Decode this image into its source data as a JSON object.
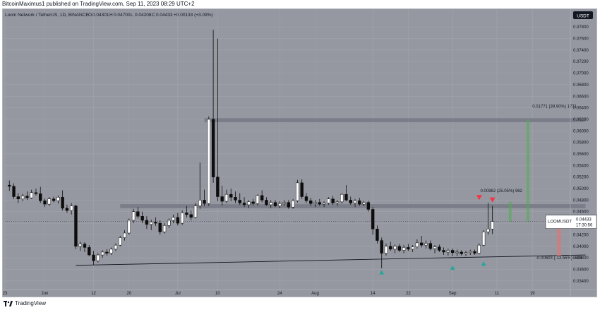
{
  "publish_line": "BitcoinMaximus1 published on TradingView.com, Sep 11, 2023 08:29 UTC+2",
  "footer": {
    "brand": "TradingView"
  },
  "colors": {
    "background": "#9598a1",
    "grid": "#a3a6ae",
    "text": "#131722",
    "up_candle_body": "#ffffff",
    "down_candle_body": "#0d0d0d",
    "wick": "#0d0d0d",
    "zone": "#787b86",
    "green_arrow": "#26a69a",
    "red_arrow": "#f23645",
    "green_bar": "#4caf50",
    "red_bar": "#e57373",
    "last_price_tag": "#ffffff"
  },
  "chart_data": {
    "type": "candlestick",
    "symbol_line": "Loom Network / TetherUS, 1D, BINANCE",
    "ohlc": {
      "o_label": "O",
      "o": "0.04301",
      "h_label": "H",
      "h": "0.04700",
      "l_label": "L",
      "l": "0.04208",
      "c_label": "C",
      "c": "0.04433",
      "change": "+0.00133 (+3.09%)"
    },
    "currency_badge": "USDT",
    "price_tag": {
      "symbol": "LOOMUSDT",
      "price": "0.04433",
      "countdown": "17:30:56"
    },
    "ylim": [
      0.033,
      0.079
    ],
    "y_ticks": [
      "0.03400",
      "0.03600",
      "0.03800",
      "0.04000",
      "0.04200",
      "0.04400",
      "0.04600",
      "0.04800",
      "0.05000",
      "0.05200",
      "0.05400",
      "0.05600",
      "0.05800",
      "0.06000",
      "0.06200",
      "0.06400",
      "0.06600",
      "0.06800",
      "0.07000",
      "0.07200",
      "0.07400",
      "0.07600",
      "0.07800"
    ],
    "y_tick_values": [
      0.034,
      0.036,
      0.038,
      0.04,
      0.042,
      0.044,
      0.046,
      0.048,
      0.05,
      0.052,
      0.054,
      0.056,
      0.058,
      0.06,
      0.062,
      0.064,
      0.066,
      0.068,
      0.07,
      0.072,
      0.074,
      0.076,
      0.078
    ],
    "x_day_range": [
      0,
      122
    ],
    "x_ticks": [
      {
        "label": "23",
        "day": 0
      },
      {
        "label": "Jun",
        "day": 9
      },
      {
        "label": "12",
        "day": 20
      },
      {
        "label": "20",
        "day": 28
      },
      {
        "label": "Jul",
        "day": 39
      },
      {
        "label": "10",
        "day": 48
      },
      {
        "label": "24",
        "day": 62
      },
      {
        "label": "Aug",
        "day": 70
      },
      {
        "label": "14",
        "day": 83
      },
      {
        "label": "22",
        "day": 91
      },
      {
        "label": "Sep",
        "day": 101
      },
      {
        "label": "11",
        "day": 111
      },
      {
        "label": "19",
        "day": 119
      },
      {
        "label": "Oct",
        "day": 131
      }
    ],
    "candles": [
      [
        0.0506,
        0.0514,
        0.0496,
        0.0504
      ],
      [
        0.0504,
        0.0509,
        0.0482,
        0.0486
      ],
      [
        0.0486,
        0.0492,
        0.0475,
        0.0482
      ],
      [
        0.0482,
        0.0491,
        0.0478,
        0.0487
      ],
      [
        0.0487,
        0.0495,
        0.048,
        0.0484
      ],
      [
        0.0484,
        0.0498,
        0.0482,
        0.0493
      ],
      [
        0.0493,
        0.05,
        0.0488,
        0.0491
      ],
      [
        0.0491,
        0.0503,
        0.0475,
        0.0479
      ],
      [
        0.0479,
        0.0483,
        0.0468,
        0.0473
      ],
      [
        0.0473,
        0.0485,
        0.047,
        0.0482
      ],
      [
        0.0482,
        0.0486,
        0.0476,
        0.0479
      ],
      [
        0.0479,
        0.0488,
        0.0474,
        0.0485
      ],
      [
        0.0485,
        0.0497,
        0.0462,
        0.0466
      ],
      [
        0.0466,
        0.0472,
        0.0458,
        0.0462
      ],
      [
        0.0462,
        0.0475,
        0.0455,
        0.047
      ],
      [
        0.047,
        0.0472,
        0.0395,
        0.04
      ],
      [
        0.04,
        0.0408,
        0.0392,
        0.0404
      ],
      [
        0.0404,
        0.0407,
        0.039,
        0.0398
      ],
      [
        0.0398,
        0.0402,
        0.0383,
        0.0385
      ],
      [
        0.0385,
        0.0392,
        0.0368,
        0.0375
      ],
      [
        0.0375,
        0.0388,
        0.0372,
        0.0385
      ],
      [
        0.0385,
        0.0393,
        0.038,
        0.039
      ],
      [
        0.039,
        0.0395,
        0.0384,
        0.0388
      ],
      [
        0.0388,
        0.0398,
        0.0385,
        0.0395
      ],
      [
        0.0395,
        0.0405,
        0.0392,
        0.0402
      ],
      [
        0.0402,
        0.0418,
        0.04,
        0.0415
      ],
      [
        0.0415,
        0.0428,
        0.041,
        0.0423
      ],
      [
        0.0423,
        0.0448,
        0.042,
        0.0445
      ],
      [
        0.0445,
        0.0465,
        0.044,
        0.046
      ],
      [
        0.046,
        0.0468,
        0.0448,
        0.0452
      ],
      [
        0.0452,
        0.046,
        0.044,
        0.0445
      ],
      [
        0.0445,
        0.0452,
        0.043,
        0.0438
      ],
      [
        0.0438,
        0.0446,
        0.0428,
        0.0442
      ],
      [
        0.0442,
        0.045,
        0.0435,
        0.044
      ],
      [
        0.044,
        0.0445,
        0.042,
        0.0425
      ],
      [
        0.0425,
        0.044,
        0.0422,
        0.0436
      ],
      [
        0.0436,
        0.0448,
        0.0432,
        0.0445
      ],
      [
        0.0445,
        0.0455,
        0.044,
        0.045
      ],
      [
        0.045,
        0.0458,
        0.0436,
        0.044
      ],
      [
        0.044,
        0.0462,
        0.0437,
        0.0458
      ],
      [
        0.0458,
        0.047,
        0.045,
        0.0455
      ],
      [
        0.0455,
        0.0462,
        0.0445,
        0.045
      ],
      [
        0.045,
        0.0475,
        0.0448,
        0.047
      ],
      [
        0.047,
        0.0545,
        0.0465,
        0.048
      ],
      [
        0.048,
        0.0498,
        0.047,
        0.0474
      ],
      [
        0.0474,
        0.0625,
        0.047,
        0.062
      ],
      [
        0.062,
        0.0775,
        0.051,
        0.052
      ],
      [
        0.052,
        0.076,
        0.0478,
        0.0486
      ],
      [
        0.0486,
        0.0505,
        0.047,
        0.0478
      ],
      [
        0.0478,
        0.0498,
        0.0475,
        0.049
      ],
      [
        0.049,
        0.05,
        0.0478,
        0.0485
      ],
      [
        0.0485,
        0.0495,
        0.0475,
        0.048
      ],
      [
        0.048,
        0.0492,
        0.0472,
        0.0475
      ],
      [
        0.0475,
        0.0485,
        0.0468,
        0.0472
      ],
      [
        0.0472,
        0.048,
        0.0466,
        0.0477
      ],
      [
        0.0477,
        0.0482,
        0.047,
        0.0474
      ],
      [
        0.0474,
        0.049,
        0.047,
        0.0488
      ],
      [
        0.0488,
        0.0497,
        0.0476,
        0.048
      ],
      [
        0.048,
        0.0485,
        0.047,
        0.0472
      ],
      [
        0.0472,
        0.048,
        0.0466,
        0.0476
      ],
      [
        0.0476,
        0.048,
        0.0468,
        0.047
      ],
      [
        0.047,
        0.0478,
        0.0466,
        0.0474
      ],
      [
        0.0474,
        0.048,
        0.047,
        0.0476
      ],
      [
        0.0476,
        0.048,
        0.0465,
        0.0468
      ],
      [
        0.0468,
        0.0482,
        0.0465,
        0.0479
      ],
      [
        0.0479,
        0.0515,
        0.0476,
        0.051
      ],
      [
        0.051,
        0.0516,
        0.0482,
        0.0486
      ],
      [
        0.0486,
        0.0492,
        0.0475,
        0.0479
      ],
      [
        0.0479,
        0.0484,
        0.047,
        0.0474
      ],
      [
        0.0474,
        0.048,
        0.0468,
        0.0476
      ],
      [
        0.0476,
        0.0482,
        0.047,
        0.0473
      ],
      [
        0.0473,
        0.0478,
        0.0468,
        0.0475
      ],
      [
        0.0475,
        0.0485,
        0.0472,
        0.0482
      ],
      [
        0.0482,
        0.0487,
        0.0472,
        0.0475
      ],
      [
        0.0475,
        0.048,
        0.047,
        0.0477
      ],
      [
        0.0477,
        0.0492,
        0.0474,
        0.049
      ],
      [
        0.049,
        0.0506,
        0.0478,
        0.048
      ],
      [
        0.048,
        0.0486,
        0.0472,
        0.0475
      ],
      [
        0.0475,
        0.0482,
        0.0468,
        0.0479
      ],
      [
        0.0479,
        0.0484,
        0.047,
        0.0473
      ],
      [
        0.0473,
        0.0479,
        0.047,
        0.0476
      ],
      [
        0.0476,
        0.0479,
        0.046,
        0.0464
      ],
      [
        0.0464,
        0.0468,
        0.042,
        0.043
      ],
      [
        0.043,
        0.0436,
        0.0405,
        0.041
      ],
      [
        0.041,
        0.0415,
        0.0362,
        0.0388
      ],
      [
        0.0388,
        0.0405,
        0.0384,
        0.04
      ],
      [
        0.04,
        0.0408,
        0.0392,
        0.0395
      ],
      [
        0.0395,
        0.0403,
        0.0388,
        0.04
      ],
      [
        0.04,
        0.0404,
        0.039,
        0.0393
      ],
      [
        0.0393,
        0.0402,
        0.0388,
        0.0398
      ],
      [
        0.0398,
        0.0404,
        0.0392,
        0.0395
      ],
      [
        0.0395,
        0.0402,
        0.039,
        0.0399
      ],
      [
        0.0399,
        0.0412,
        0.0396,
        0.0406
      ],
      [
        0.0406,
        0.0418,
        0.0398,
        0.0402
      ],
      [
        0.0402,
        0.041,
        0.0396,
        0.0405
      ],
      [
        0.0405,
        0.041,
        0.0393,
        0.0396
      ],
      [
        0.0396,
        0.0402,
        0.0388,
        0.0399
      ],
      [
        0.0399,
        0.0403,
        0.039,
        0.0393
      ],
      [
        0.0393,
        0.0398,
        0.0385,
        0.039
      ],
      [
        0.039,
        0.0396,
        0.0384,
        0.0393
      ],
      [
        0.0393,
        0.0396,
        0.0383,
        0.0389
      ],
      [
        0.0389,
        0.0394,
        0.0383,
        0.039
      ],
      [
        0.039,
        0.0393,
        0.0384,
        0.0387
      ],
      [
        0.0387,
        0.0392,
        0.0383,
        0.0389
      ],
      [
        0.0389,
        0.0394,
        0.0385,
        0.0391
      ],
      [
        0.0391,
        0.0394,
        0.0385,
        0.0388
      ],
      [
        0.0388,
        0.0405,
        0.0386,
        0.0402
      ],
      [
        0.0402,
        0.0428,
        0.04,
        0.0425
      ],
      [
        0.0425,
        0.0475,
        0.042,
        0.043
      ],
      [
        0.043,
        0.047,
        0.0421,
        0.0443
      ]
    ],
    "candle_start_day": 1,
    "support_line": {
      "from": [
        16,
        0.0367
      ],
      "to": [
        131,
        0.0385
      ]
    },
    "zones": [
      {
        "name": "upper resistance",
        "day_from": 45,
        "day_to": 131,
        "y_from": 0.0615,
        "y_to": 0.0622
      },
      {
        "name": "middle resistance",
        "day_from": 26,
        "day_to": 131,
        "y_from": 0.0466,
        "y_to": 0.0473
      }
    ],
    "annotations": [
      {
        "text": "0.01771 (39.90%) 1771",
        "day": 124,
        "y": 0.064
      },
      {
        "text": "0.00962 (25.05%) 962",
        "day": 112,
        "y": 0.0494
      },
      {
        "text": "-0.00603 (-13.55%) -603",
        "day": 125,
        "y": 0.0378
      }
    ],
    "green_bars": [
      {
        "day": 118,
        "y_from": 0.0443,
        "y_to": 0.062
      },
      {
        "day": 114,
        "y_from": 0.0443,
        "y_to": 0.0477
      }
    ],
    "red_bars": [
      {
        "day": 125,
        "y_from": 0.0383,
        "y_to": 0.0443
      }
    ],
    "green_arrows": [
      {
        "day": 85,
        "y": 0.0355
      },
      {
        "day": 101,
        "y": 0.0363
      },
      {
        "day": 108,
        "y": 0.037
      }
    ],
    "red_arrows": [
      {
        "day": 107,
        "y": 0.0485
      },
      {
        "day": 110,
        "y": 0.0481
      }
    ]
  }
}
